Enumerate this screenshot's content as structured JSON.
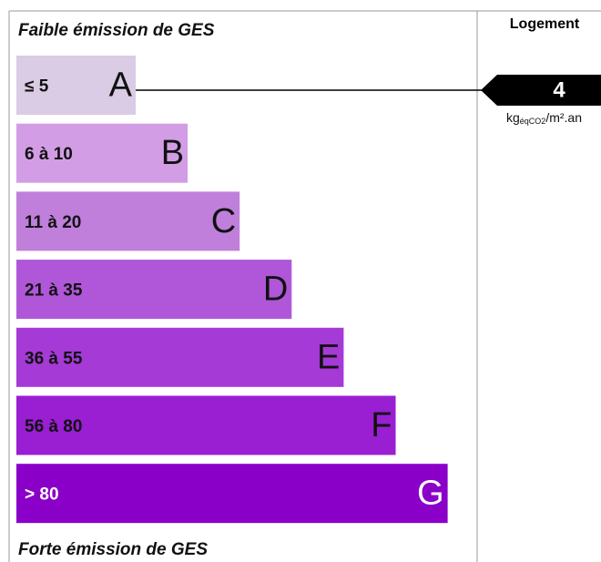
{
  "header": {
    "title": "Faible émission de GES"
  },
  "classes": [
    {
      "range": "≤ 5",
      "letter": "A",
      "color": "#d9cce4"
    },
    {
      "range": "6 à 10",
      "letter": "B",
      "color": "#d39de6"
    },
    {
      "range": "11 à 20",
      "letter": "C",
      "color": "#c07fdb"
    },
    {
      "range": "21 à 35",
      "letter": "D",
      "color": "#b056d8"
    },
    {
      "range": "36 à 55",
      "letter": "E",
      "color": "#a53ad6"
    },
    {
      "range": "56 à 80",
      "letter": "F",
      "color": "#9a1ed2"
    },
    {
      "range": "> 80",
      "letter": "G",
      "color": "#8a00c8"
    }
  ],
  "footer": {
    "title": "Forte émission de GES"
  },
  "housing": {
    "label": "Logement",
    "value": 4,
    "unit": "kg",
    "unit_sub": "éqCO2",
    "unit_suffix": "/m².an"
  }
}
